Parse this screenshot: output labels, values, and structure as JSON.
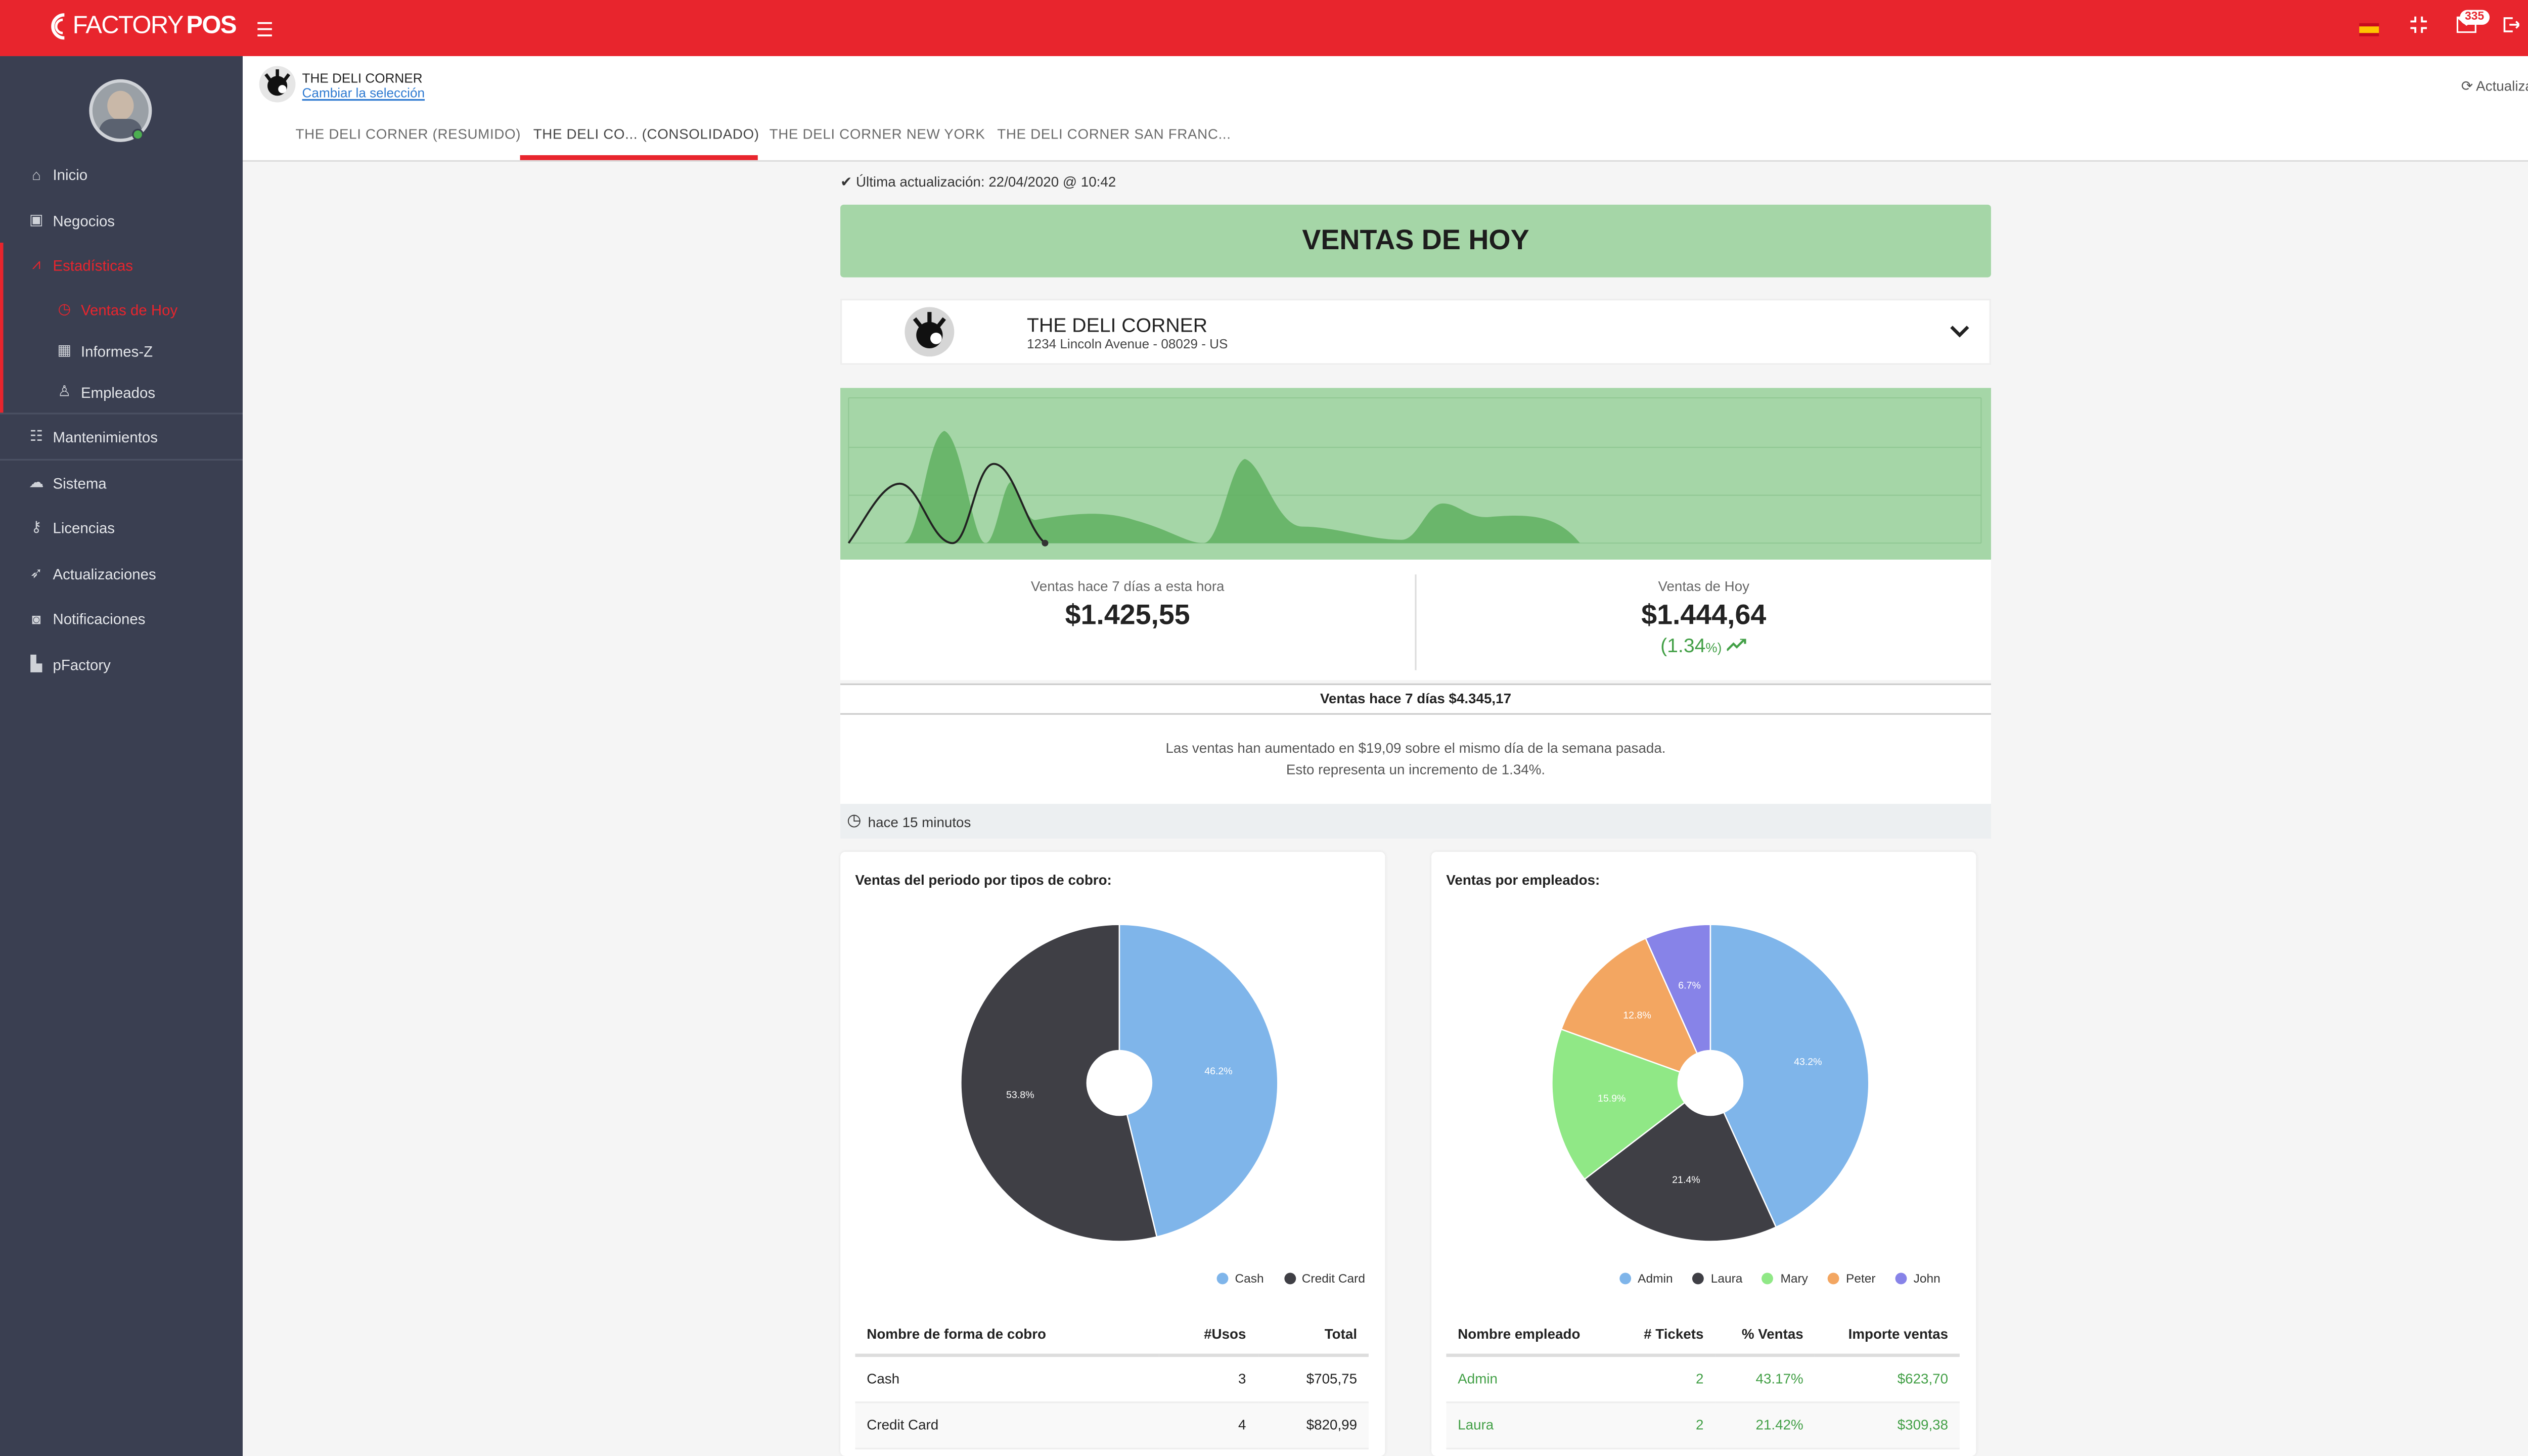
{
  "topbar": {
    "logo_prefix": "FACTORY",
    "logo_suffix": "POS",
    "notifications_count": "335",
    "menu_icon": "hamburger-icon",
    "flag_icon": "spain-flag-icon",
    "fullscreen_icon": "compress-icon",
    "mail_icon": "mail-icon",
    "logout_icon": "logout-icon"
  },
  "sidebar": {
    "items": [
      {
        "label": "Inicio",
        "icon": "home-icon"
      },
      {
        "label": "Negocios",
        "icon": "briefcase-icon"
      },
      {
        "label": "Estadísticas",
        "icon": "chart-icon"
      },
      {
        "label": "Mantenimientos",
        "icon": "list-icon"
      },
      {
        "label": "Sistema",
        "icon": "cloud-icon"
      },
      {
        "label": "Licencias",
        "icon": "key-icon"
      },
      {
        "label": "Actualizaciones",
        "icon": "rocket-icon"
      },
      {
        "label": "Notificaciones",
        "icon": "bell-icon"
      },
      {
        "label": "pFactory",
        "icon": "factory-icon"
      }
    ],
    "subitems": [
      {
        "label": "Ventas de Hoy",
        "icon": "clock-icon"
      },
      {
        "label": "Informes-Z",
        "icon": "calendar-icon"
      },
      {
        "label": "Empleados",
        "icon": "user-icon"
      }
    ]
  },
  "header": {
    "business": "THE DELI CORNER",
    "change_link": "Cambiar la selección",
    "refresh": "Actualizar todo"
  },
  "tabs": [
    {
      "label": "THE DELI CORNER (RESUMIDO)"
    },
    {
      "label": "THE DELI CO... (CONSOLIDADO)"
    },
    {
      "label": "THE DELI CORNER NEW YORK"
    },
    {
      "label": "THE DELI CORNER SAN FRANC..."
    }
  ],
  "main": {
    "last_update": "Última actualización: 22/04/2020 @ 10:42",
    "banner": "VENTAS DE HOY",
    "shop": {
      "name": "THE DELI CORNER",
      "address": "1234 Lincoln Avenue - 08029 - US"
    },
    "stat_left": {
      "label": "Ventas hace 7 días a esta hora",
      "value": "$1.425,55"
    },
    "stat_right": {
      "label": "Ventas de Hoy",
      "value": "$1.444,64",
      "pct_open": "(",
      "pct": "1.34",
      "pct_suffix": "%)"
    },
    "week_total": "Ventas hace 7 días $4.345,17",
    "desc_line1": "Las ventas han aumentado en $19,09 sobre el mismo día de la semana pasada.",
    "desc_line2": "Esto representa un incremento de 1.34%.",
    "ago": "hace 15 minutos"
  },
  "payments": {
    "title": "Ventas del periodo por tipos de cobro:",
    "headers": [
      "Nombre de forma de cobro",
      "#Usos",
      "Total"
    ],
    "rows": [
      [
        "Cash",
        "3",
        "$705,75"
      ],
      [
        "Credit Card",
        "4",
        "$820,99"
      ]
    ]
  },
  "employees": {
    "title": "Ventas por empleados:",
    "headers": [
      "Nombre empleado",
      "# Tickets",
      "% Ventas",
      "Importe ventas"
    ],
    "rows": [
      [
        "Admin",
        "2",
        "43.17%",
        "$623,70"
      ],
      [
        "Laura",
        "2",
        "21.42%",
        "$309,38"
      ]
    ]
  },
  "chart_data": [
    {
      "type": "pie",
      "title": "Ventas del periodo por tipos de cobro:",
      "labels": [
        "Cash",
        "Credit Card"
      ],
      "values": [
        46.2,
        53.8
      ],
      "value_labels": [
        "46.2%",
        "53.8%"
      ],
      "colors": [
        "#7fb5ea",
        "#3f3f45"
      ],
      "legend": "bottom"
    },
    {
      "type": "pie",
      "title": "Ventas por empleados:",
      "labels": [
        "Admin",
        "Laura",
        "Mary",
        "Peter",
        "John"
      ],
      "values": [
        43.2,
        21.4,
        15.9,
        12.8,
        6.7
      ],
      "value_labels": [
        "43.2%",
        "21.4%",
        "15.9%",
        "12.8%",
        "6.7%"
      ],
      "colors": [
        "#7fb5ea",
        "#3f3f45",
        "#90e886",
        "#f3a661",
        "#8783e8"
      ],
      "legend": "bottom"
    }
  ],
  "colors": {
    "brand": "#e8252d",
    "sidebar": "#3a3f51",
    "positive": "#43a047"
  }
}
